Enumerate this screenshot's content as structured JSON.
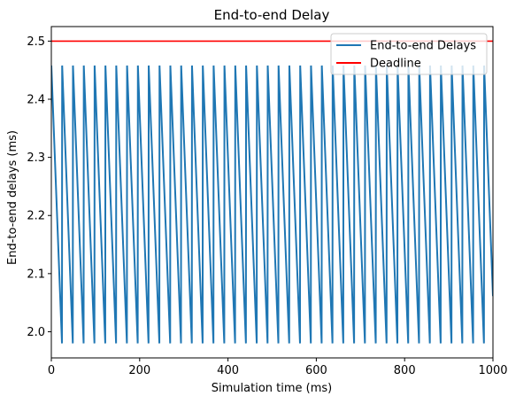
{
  "chart_data": {
    "type": "line",
    "title": "End-to-end Delay",
    "xlabel": "Simulation time (ms)",
    "ylabel": "End-to-end delays (ms)",
    "xlim": [
      0,
      1000
    ],
    "ylim": [
      1.955,
      2.525
    ],
    "xticks": [
      0,
      200,
      400,
      600,
      800,
      1000
    ],
    "yticks": [
      2.0,
      2.1,
      2.2,
      2.3,
      2.4,
      2.5
    ],
    "xtick_labels": [
      "0",
      "200",
      "400",
      "600",
      "800",
      "1000"
    ],
    "ytick_labels": [
      "2.0",
      "2.1",
      "2.2",
      "2.3",
      "2.4",
      "2.5"
    ],
    "grid": false,
    "legend_position": "top-right",
    "series": [
      {
        "name": "End-to-end Delays",
        "color": "#1f77b4",
        "pattern": "sawtooth",
        "period": 24.5,
        "high": 2.458,
        "low": 1.98,
        "x_start": 0,
        "x_end": 1000
      },
      {
        "name": "Deadline",
        "color": "#ff0000",
        "y": 2.5
      }
    ],
    "legend": {
      "entries": [
        "End-to-end Delays",
        "Deadline"
      ]
    }
  }
}
